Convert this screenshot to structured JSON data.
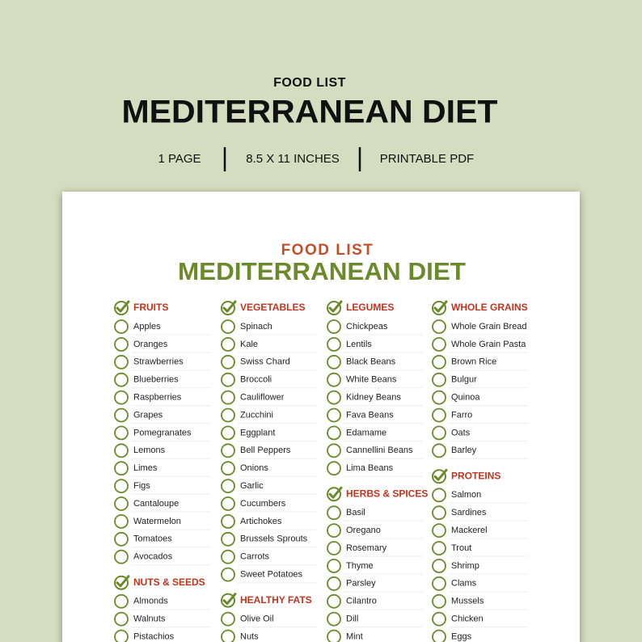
{
  "header": {
    "label": "FOOD LIST",
    "title": "MEDITERRANEAN DIET",
    "details": [
      "1 PAGE",
      "8.5 X 11 INCHES",
      "PRINTABLE PDF"
    ]
  },
  "sheet": {
    "label": "FOOD LIST",
    "title": "MEDITERRANEAN DIET",
    "columns": [
      {
        "sections": [
          {
            "heading": "FRUITS",
            "items": [
              "Apples",
              "Oranges",
              "Strawberries",
              "Blueberries",
              "Raspberries",
              "Grapes",
              "Pomegranates",
              "Lemons",
              "Limes",
              "Figs",
              "Cantaloupe",
              "Watermelon",
              "Tomatoes",
              "Avocados"
            ]
          },
          {
            "heading": "NUTS & SEEDS",
            "items": [
              "Almonds",
              "Walnuts",
              "Pistachios"
            ]
          }
        ]
      },
      {
        "sections": [
          {
            "heading": "VEGETABLES",
            "items": [
              "Spinach",
              "Kale",
              "Swiss Chard",
              "Broccoli",
              "Cauliflower",
              "Zucchini",
              "Eggplant",
              "Bell Peppers",
              "Onions",
              "Garlic",
              "Cucumbers",
              "Artichokes",
              "Brussels Sprouts",
              "Carrots",
              "Sweet Potatoes"
            ]
          },
          {
            "heading": "HEALTHY FATS",
            "items": [
              "Olive Oil",
              "Nuts"
            ]
          }
        ]
      },
      {
        "sections": [
          {
            "heading": "LEGUMES",
            "items": [
              "Chickpeas",
              "Lentils",
              "Black Beans",
              "White Beans",
              "Kidney Beans",
              "Fava Beans",
              "Edamame",
              "Cannellini Beans",
              "Lima Beans"
            ]
          },
          {
            "heading": "HERBS & SPICES",
            "items": [
              "Basil",
              "Oregano",
              "Rosemary",
              "Thyme",
              "Parsley",
              "Cilantro",
              "Dill",
              "Mint"
            ]
          }
        ]
      },
      {
        "sections": [
          {
            "heading": "WHOLE GRAINS",
            "items": [
              "Whole Grain Bread",
              "Whole Grain Pasta",
              "Brown Rice",
              "Bulgur",
              "Quinoa",
              "Farro",
              "Oats",
              "Barley"
            ]
          },
          {
            "heading": "PROTEINS",
            "items": [
              "Salmon",
              "Sardines",
              "Mackerel",
              "Trout",
              "Shrimp",
              "Clams",
              "Mussels",
              "Chicken",
              "Eggs"
            ]
          }
        ]
      }
    ]
  }
}
